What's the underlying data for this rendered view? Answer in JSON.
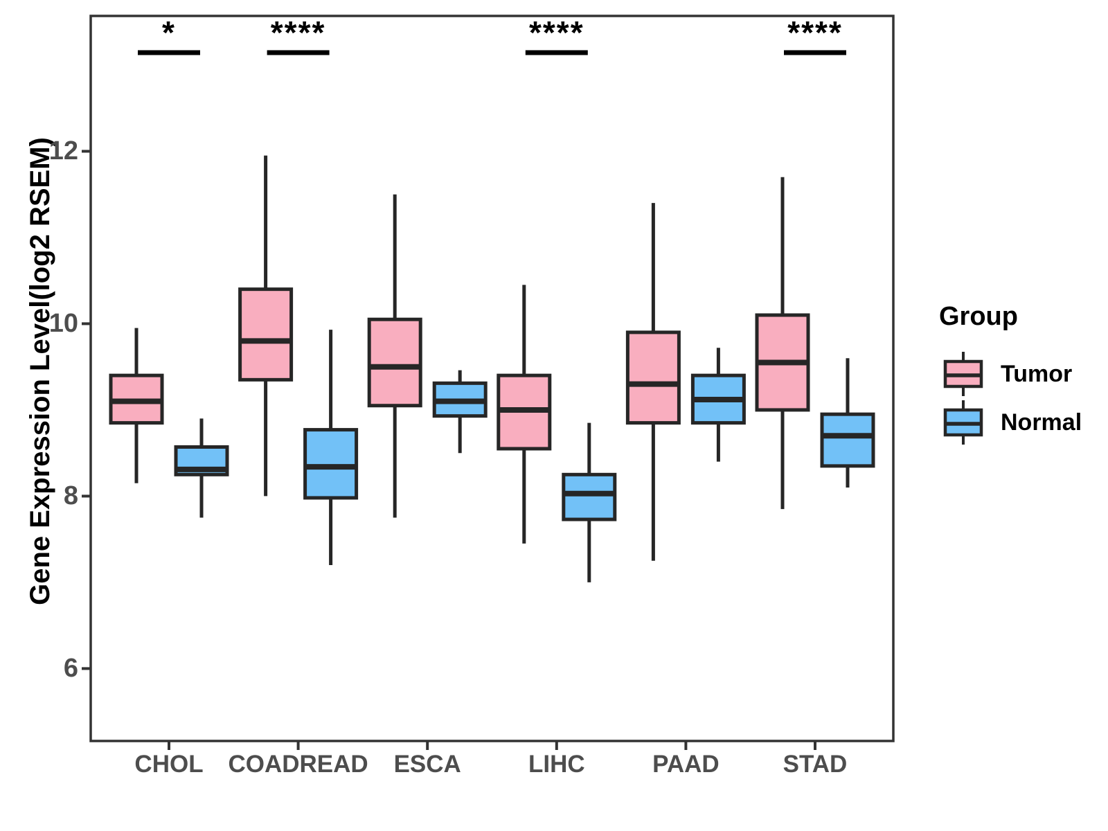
{
  "chart_data": {
    "type": "boxplot",
    "title": "",
    "xlabel": "",
    "ylabel": "Gene Expression Level(log2 RSEM)",
    "ylim": [
      5.16,
      13.57
    ],
    "yticks": [
      6,
      8,
      10,
      12
    ],
    "grid": "off",
    "categories": [
      "CHOL",
      "COADREAD",
      "ESCA",
      "LIHC",
      "PAAD",
      "STAD"
    ],
    "significance": [
      "*",
      "****",
      "",
      "****",
      "",
      "****"
    ],
    "legend": {
      "title": "Group",
      "position": "right",
      "entries": [
        {
          "label": "Tumor",
          "color": "#F9AEBF"
        },
        {
          "label": "Normal",
          "color": "#72C1F7"
        }
      ]
    },
    "colors": {
      "tumor_fill": "#F9AEBF",
      "normal_fill": "#72C1F7",
      "box_stroke": "#262626",
      "panel_border": "#333333",
      "axis_text": "#4d4d4d"
    },
    "series": [
      {
        "name": "Tumor",
        "color": "#F9AEBF",
        "boxes": [
          {
            "category": "CHOL",
            "lower": 8.15,
            "q1": 8.85,
            "median": 9.1,
            "q3": 9.4,
            "upper": 9.95
          },
          {
            "category": "COADREAD",
            "lower": 8.0,
            "q1": 9.35,
            "median": 9.8,
            "q3": 10.4,
            "upper": 11.95
          },
          {
            "category": "ESCA",
            "lower": 7.75,
            "q1": 9.05,
            "median": 9.5,
            "q3": 10.05,
            "upper": 11.5
          },
          {
            "category": "LIHC",
            "lower": 7.45,
            "q1": 8.55,
            "median": 9.0,
            "q3": 9.4,
            "upper": 10.45
          },
          {
            "category": "PAAD",
            "lower": 7.25,
            "q1": 8.85,
            "median": 9.3,
            "q3": 9.9,
            "upper": 11.4
          },
          {
            "category": "STAD",
            "lower": 7.85,
            "q1": 9.0,
            "median": 9.55,
            "q3": 10.1,
            "upper": 11.7
          }
        ]
      },
      {
        "name": "Normal",
        "color": "#72C1F7",
        "boxes": [
          {
            "category": "CHOL",
            "lower": 7.75,
            "q1": 8.25,
            "median": 8.31,
            "q3": 8.57,
            "upper": 8.9
          },
          {
            "category": "COADREAD",
            "lower": 7.2,
            "q1": 7.98,
            "median": 8.34,
            "q3": 8.77,
            "upper": 9.93
          },
          {
            "category": "ESCA",
            "lower": 8.5,
            "q1": 8.93,
            "median": 9.1,
            "q3": 9.31,
            "upper": 9.46
          },
          {
            "category": "LIHC",
            "lower": 7.0,
            "q1": 7.73,
            "median": 8.03,
            "q3": 8.25,
            "upper": 8.85
          },
          {
            "category": "PAAD",
            "lower": 8.4,
            "q1": 8.85,
            "median": 9.12,
            "q3": 9.4,
            "upper": 9.72
          },
          {
            "category": "STAD",
            "lower": 8.1,
            "q1": 8.35,
            "median": 8.7,
            "q3": 8.95,
            "upper": 9.6
          }
        ]
      }
    ]
  }
}
